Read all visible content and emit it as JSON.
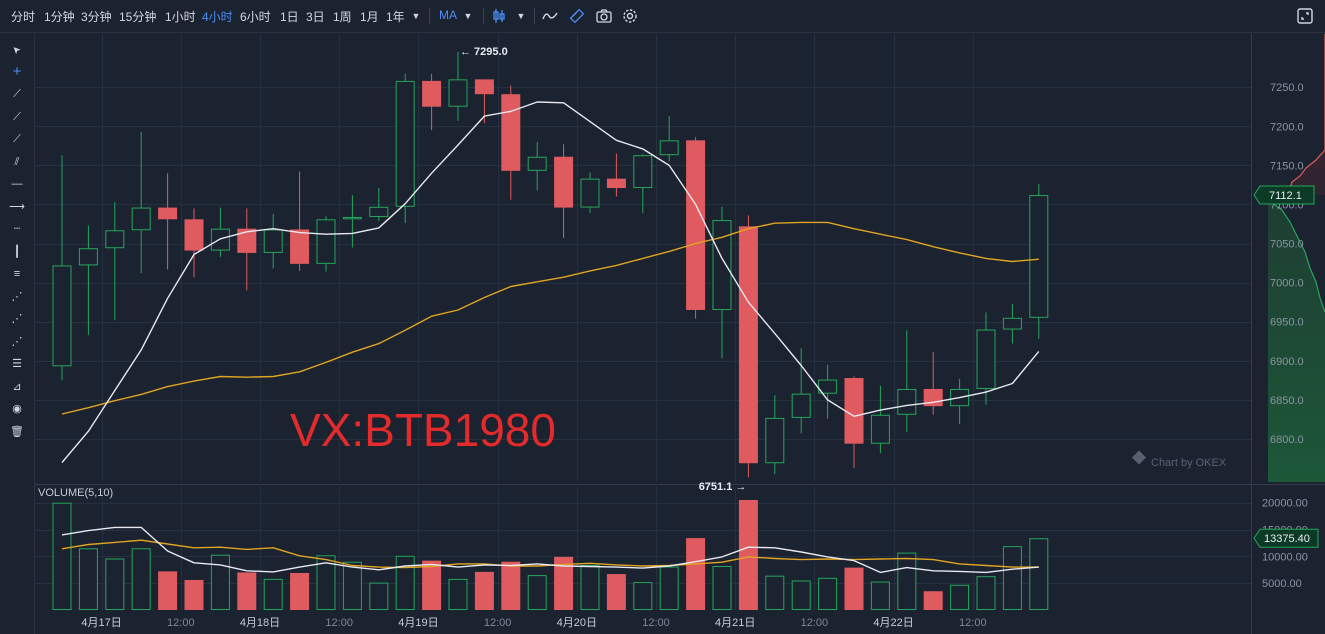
{
  "toolbar": {
    "intervals": [
      "分时",
      "1分钟",
      "3分钟",
      "15分钟",
      "1小时",
      "4小时",
      "6小时",
      "1日",
      "3日",
      "1周",
      "1月",
      "1年"
    ],
    "active_interval": "4小时",
    "indicator_label": "MA",
    "icons": [
      "chevron-down-icon",
      "candle-type-icon",
      "chevron-down-icon",
      "line-icon",
      "drawing-icon",
      "camera-icon",
      "gear-icon"
    ],
    "fullscreen_icon": "fullscreen-icon"
  },
  "left_tools": [
    "cursor-icon",
    "crosshair-icon",
    "trendline-icon",
    "ray-icon",
    "extended-line-icon",
    "parallel-channel-icon",
    "horizontal-line-icon",
    "horizontal-ray-icon",
    "horizontal-segment-icon",
    "vertical-line-icon",
    "price-range-icon",
    "fib-retracement-icon",
    "fib-extension-icon",
    "fib-fan-icon",
    "fib-channel-icon",
    "gann-fan-icon",
    "eye-icon",
    "trash-icon"
  ],
  "watermark_text": "VX:BTB1980",
  "brand_text": "Chart by OKEX",
  "volume_label": "VOLUME(5,10)",
  "colors": {
    "background": "#1b2230",
    "up": "#26a65b",
    "down": "#e05b5f",
    "ma_short": "#e8e8f0",
    "ma_long": "#e0a521",
    "watermark": "#e32b2b",
    "price_tag_bg": "#0d3a26",
    "price_tag_border": "#26a65b"
  },
  "chart_data": {
    "type": "candlestick",
    "price_axis": {
      "ticks": [
        6800.0,
        6850.0,
        6900.0,
        6950.0,
        7000.0,
        7050.0,
        7100.0,
        7150.0,
        7200.0,
        7250.0
      ],
      "tick_labels": [
        "6800.0",
        "6850.0",
        "6900.0",
        "6950.0",
        "7000.0",
        "7050.0",
        "7100.0",
        "7150.0",
        "7200.0",
        "7250.0"
      ],
      "range": [
        6745,
        7318
      ]
    },
    "volume_axis": {
      "ticks": [
        5000,
        10000,
        15000,
        20000
      ],
      "tick_labels": [
        "5000.00",
        "10000.00",
        "15000.00",
        "20000.00"
      ],
      "range": [
        0,
        20500
      ]
    },
    "x_labels": [
      {
        "index": 1.5,
        "label": "4月17日",
        "major": true
      },
      {
        "index": 4.5,
        "label": "12:00",
        "major": false
      },
      {
        "index": 7.5,
        "label": "4月18日",
        "major": true
      },
      {
        "index": 10.5,
        "label": "12:00",
        "major": false
      },
      {
        "index": 13.5,
        "label": "4月19日",
        "major": true
      },
      {
        "index": 16.5,
        "label": "12:00",
        "major": false
      },
      {
        "index": 19.5,
        "label": "4月20日",
        "major": true
      },
      {
        "index": 22.5,
        "label": "12:00",
        "major": false
      },
      {
        "index": 25.5,
        "label": "4月21日",
        "major": true
      },
      {
        "index": 28.5,
        "label": "12:00",
        "major": false
      },
      {
        "index": 31.5,
        "label": "4月22日",
        "major": true
      },
      {
        "index": 34.5,
        "label": "12:00",
        "major": false
      }
    ],
    "candles": [
      {
        "o": 6893,
        "h": 7163,
        "l": 6875,
        "c": 7022,
        "v": 20000
      },
      {
        "o": 7022,
        "h": 7073,
        "l": 6933,
        "c": 7044,
        "v": 11500
      },
      {
        "o": 7044,
        "h": 7103,
        "l": 6952,
        "c": 7067,
        "v": 9600
      },
      {
        "o": 7067,
        "h": 7193,
        "l": 7012,
        "c": 7096,
        "v": 11500
      },
      {
        "o": 7096,
        "h": 7140,
        "l": 7017,
        "c": 7081,
        "v": 7200
      },
      {
        "o": 7081,
        "h": 7095,
        "l": 7007,
        "c": 7041,
        "v": 5600
      },
      {
        "o": 7041,
        "h": 7096,
        "l": 7033,
        "c": 7069,
        "v": 10300
      },
      {
        "o": 7069,
        "h": 7095,
        "l": 6990,
        "c": 7038,
        "v": 7000
      },
      {
        "o": 7038,
        "h": 7088,
        "l": 7018,
        "c": 7068,
        "v": 5800
      },
      {
        "o": 7068,
        "h": 7142,
        "l": 7015,
        "c": 7024,
        "v": 6900
      },
      {
        "o": 7024,
        "h": 7085,
        "l": 7014,
        "c": 7081,
        "v": 10200
      },
      {
        "o": 7081,
        "h": 7112,
        "l": 7045,
        "c": 7084,
        "v": 9000
      },
      {
        "o": 7084,
        "h": 7121,
        "l": 7079,
        "c": 7097,
        "v": 5100
      },
      {
        "o": 7097,
        "h": 7267,
        "l": 7076,
        "c": 7258,
        "v": 10100
      },
      {
        "o": 7258,
        "h": 7267,
        "l": 7195,
        "c": 7225,
        "v": 9200
      },
      {
        "o": 7225,
        "h": 7295,
        "l": 7207,
        "c": 7260,
        "v": 5800
      },
      {
        "o": 7260,
        "h": 7258,
        "l": 7204,
        "c": 7241,
        "v": 7100
      },
      {
        "o": 7241,
        "h": 7252,
        "l": 7106,
        "c": 7143,
        "v": 9000
      },
      {
        "o": 7143,
        "h": 7180,
        "l": 7118,
        "c": 7161,
        "v": 6500
      },
      {
        "o": 7161,
        "h": 7177,
        "l": 7057,
        "c": 7096,
        "v": 9900
      },
      {
        "o": 7096,
        "h": 7141,
        "l": 7089,
        "c": 7133,
        "v": 8400
      },
      {
        "o": 7133,
        "h": 7165,
        "l": 7110,
        "c": 7121,
        "v": 6700
      },
      {
        "o": 7121,
        "h": 7164,
        "l": 7089,
        "c": 7163,
        "v": 5200
      },
      {
        "o": 7163,
        "h": 7213,
        "l": 7155,
        "c": 7182,
        "v": 8100
      },
      {
        "o": 7182,
        "h": 7186,
        "l": 6954,
        "c": 6965,
        "v": 13400
      },
      {
        "o": 6965,
        "h": 7097,
        "l": 6903,
        "c": 7080,
        "v": 8200
      },
      {
        "o": 7072,
        "h": 7086,
        "l": 6751.1,
        "c": 6769,
        "v": 20500
      },
      {
        "o": 6769,
        "h": 6856,
        "l": 6755,
        "c": 6827,
        "v": 6400
      },
      {
        "o": 6827,
        "h": 6916,
        "l": 6807,
        "c": 6858,
        "v": 5500
      },
      {
        "o": 6858,
        "h": 6895,
        "l": 6826,
        "c": 6876,
        "v": 6000
      },
      {
        "o": 6878,
        "h": 6880,
        "l": 6763,
        "c": 6794,
        "v": 7900
      },
      {
        "o": 6794,
        "h": 6868,
        "l": 6782,
        "c": 6831,
        "v": 5300
      },
      {
        "o": 6831,
        "h": 6939,
        "l": 6809,
        "c": 6864,
        "v": 10700
      },
      {
        "o": 6864,
        "h": 6911,
        "l": 6831,
        "c": 6842,
        "v": 3500
      },
      {
        "o": 6842,
        "h": 6877,
        "l": 6819,
        "c": 6864,
        "v": 4700
      },
      {
        "o": 6864,
        "h": 6962,
        "l": 6844,
        "c": 6940,
        "v": 6300
      },
      {
        "o": 6940,
        "h": 6973,
        "l": 6922,
        "c": 6955,
        "v": 11900
      },
      {
        "o": 6955,
        "h": 7126,
        "l": 6928,
        "c": 7112,
        "v": 13375.4
      }
    ],
    "ma_short": [
      6770,
      6810,
      6862,
      6914,
      6980,
      7036,
      7056,
      7065,
      7069,
      7064,
      7062,
      7063,
      7070,
      7101,
      7140,
      7176,
      7213,
      7219,
      7231,
      7230,
      7206,
      7182,
      7171,
      7150,
      7100,
      7031,
      6975,
      6935,
      6894,
      6850,
      6829,
      6837,
      6843,
      6847,
      6853,
      6860,
      6871,
      6912
    ],
    "ma_long": [
      6832,
      6840,
      6849,
      6857,
      6867,
      6874,
      6880,
      6879,
      6880,
      6886,
      6898,
      6911,
      6922,
      6939,
      6957,
      6965,
      6981,
      6995,
      7001,
      7007,
      7015,
      7022,
      7031,
      7040,
      7050,
      7058,
      7069,
      7076,
      7077,
      7077,
      7069,
      7062,
      7055,
      7046,
      7038,
      7031,
      7027,
      7030
    ],
    "vol_ma_short": [
      14000,
      14800,
      15400,
      15400,
      11000,
      8800,
      8400,
      7300,
      7100,
      8000,
      8800,
      8000,
      7500,
      8200,
      8500,
      8000,
      8400,
      8300,
      8600,
      8200,
      8100,
      8000,
      7800,
      8200,
      9000,
      9900,
      11700,
      11600,
      10800,
      9900,
      9200,
      7000,
      7900,
      7300,
      7200,
      7000,
      7600,
      8000
    ],
    "vol_ma_long": [
      11400,
      12200,
      12600,
      13000,
      12300,
      11600,
      11700,
      11300,
      11600,
      10100,
      9400,
      8300,
      8000,
      7900,
      8100,
      8600,
      8600,
      8200,
      8200,
      8500,
      8700,
      8400,
      8200,
      8300,
      8600,
      8900,
      9900,
      9600,
      9400,
      9500,
      9400,
      9500,
      9600,
      9400,
      8600,
      8300,
      8000,
      8000
    ],
    "annotations": {
      "high_label": "7295.0",
      "low_label": "6751.1",
      "last_price_label": "7112.1",
      "last_volume_label": "13375.40"
    }
  }
}
